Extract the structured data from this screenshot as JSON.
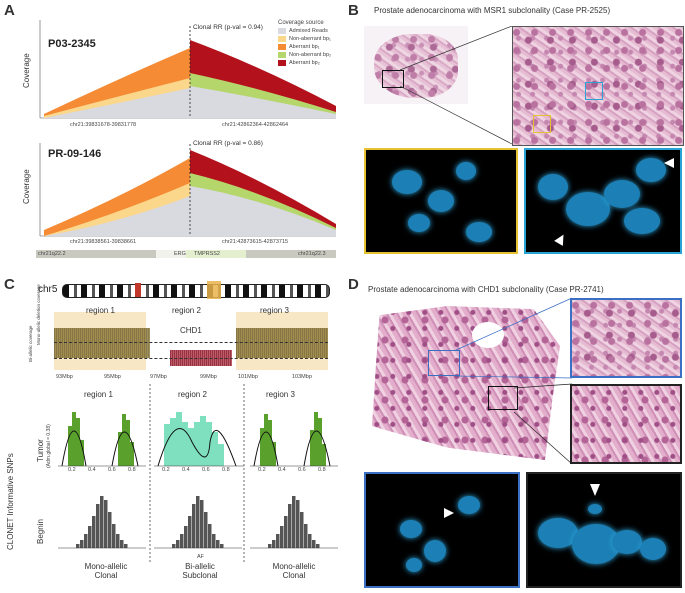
{
  "panels": {
    "a": {
      "letter": "A",
      "top_sample": "P03-2345",
      "top_clonal_rr": "Clonal RR (p-val = 0.94)",
      "top_left_coord": "chr21:39831678-39831778",
      "top_right_coord": "chr21:42862364-42862464",
      "bottom_sample": "PR-09-146",
      "bottom_clonal_rr": "Clonal RR (p-val = 0.86)",
      "bottom_left_coord": "chr21:39838561-39838661",
      "bottom_right_coord": "chr21:42873615-42873715",
      "ylabel": "Coverage",
      "legend_title": "Coverage source",
      "legend": [
        {
          "label": "Admixed Reads",
          "color": "#d9d9e0"
        },
        {
          "label": "Non-aberrant bp₁",
          "color": "#fbd78b"
        },
        {
          "label": "Aberrant bp₁",
          "color": "#f58b35"
        },
        {
          "label": "Non-aberrant bp₂",
          "color": "#b5d66b"
        },
        {
          "label": "Aberrant bp₂",
          "color": "#b3121c"
        }
      ],
      "ideogram": {
        "left_band": "chr21q22.2",
        "gene1": "ERG",
        "gene2": "TMPRSS2",
        "right_band": "chr21q22.3"
      }
    },
    "b": {
      "letter": "B",
      "title": "Prostate adenocarcinoma with MSR1 subclonality (Case PR-2525)"
    },
    "c": {
      "letter": "C",
      "chromosome": "chr5",
      "regions": [
        "region 1",
        "region 2",
        "region 3"
      ],
      "gene": "CHD1",
      "ylab_mono": "Mono-allelic deletion coverage",
      "ylab_bi": "Bi-allelic coverage",
      "x_ticks": [
        "93Mbp",
        "95Mbp",
        "97Mbp",
        "99Mbp",
        "101Mbp",
        "103Mbp"
      ],
      "tumor_label": "Tumor",
      "tumor_sub": "(Adm.global = 0.38)",
      "benign_label": "Begnin",
      "side_label": "CLONET Informative SNPs",
      "af_label": "AF",
      "ticks_af": [
        "0.2",
        "0.4",
        "0.6",
        "0.8"
      ],
      "bottom_labels": [
        {
          "line1": "Mono-allelic",
          "line2": "Clonal"
        },
        {
          "line1": "Bi-allelic",
          "line2": "Subclonal"
        },
        {
          "line1": "Mono-allelic",
          "line2": "Clonal"
        }
      ]
    },
    "d": {
      "letter": "D",
      "title": "Prostate adenocarcinoma with CHD1 subclonality (Case PR-2741)"
    }
  }
}
